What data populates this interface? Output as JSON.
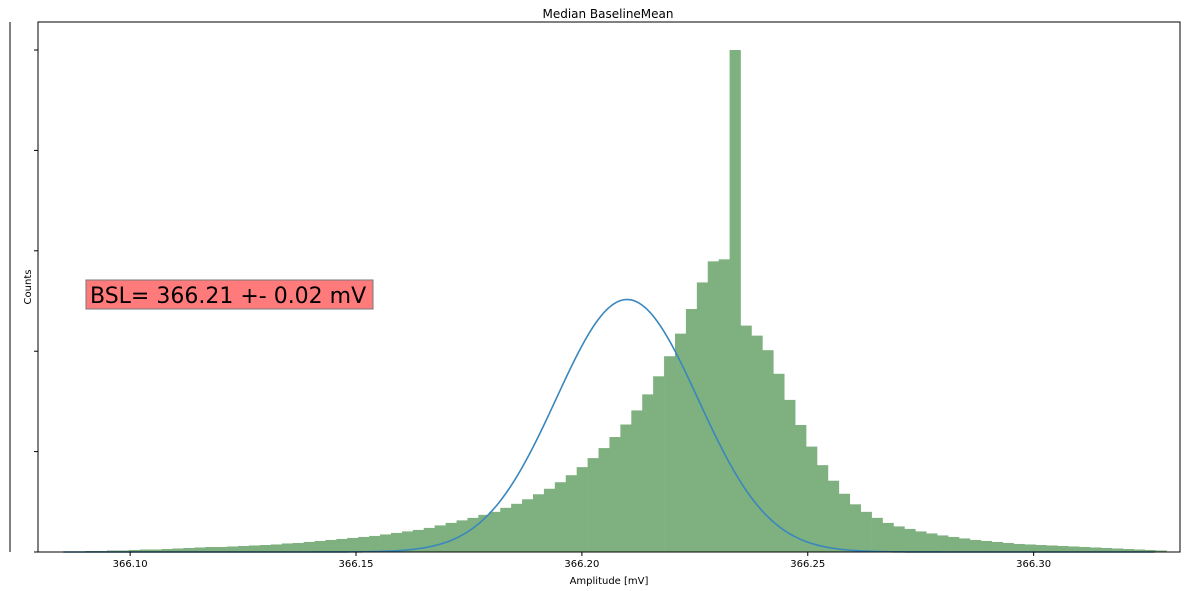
{
  "chart_data": {
    "type": "bar",
    "title": "Median BaselineMean",
    "xlabel": "Amplitude [mV]",
    "ylabel": "Counts",
    "xlim": [
      366.0796,
      366.3324
    ],
    "ylim": [
      0,
      100
    ],
    "xticks": [
      366.1,
      366.15,
      366.2,
      366.25,
      366.3
    ],
    "xtick_labels": [
      "366.10",
      "366.15",
      "366.20",
      "366.25",
      "366.30"
    ],
    "grid": false,
    "histogram": {
      "color": "#7fb07f",
      "bin_start": 366.0852,
      "bin_width": 0.002418,
      "counts": [
        0.1,
        0.1,
        0.2,
        0.2,
        0.3,
        0.3,
        0.4,
        0.5,
        0.5,
        0.6,
        0.7,
        0.8,
        0.9,
        1.0,
        1.0,
        1.1,
        1.2,
        1.3,
        1.4,
        1.5,
        1.7,
        1.8,
        2.0,
        2.2,
        2.4,
        2.6,
        2.8,
        3.0,
        3.2,
        3.5,
        3.8,
        4.1,
        4.4,
        4.8,
        5.3,
        5.8,
        6.3,
        6.8,
        7.4,
        8.0,
        8.8,
        9.6,
        10.5,
        11.5,
        12.6,
        13.9,
        15.3,
        16.9,
        18.7,
        20.7,
        22.9,
        25.4,
        28.2,
        31.4,
        35.0,
        39.0,
        43.5,
        48.4,
        53.7,
        57.9,
        58.3,
        100.0,
        45.1,
        43.1,
        40.2,
        35.5,
        30.3,
        25.3,
        21.0,
        17.3,
        14.2,
        11.6,
        9.5,
        8.0,
        6.8,
        5.8,
        5.1,
        4.6,
        4.1,
        3.7,
        3.3,
        3.0,
        2.7,
        2.4,
        2.2,
        2.0,
        1.8,
        1.6,
        1.5,
        1.4,
        1.3,
        1.2,
        1.1,
        1.0,
        0.9,
        0.8,
        0.7,
        0.6,
        0.5,
        0.4,
        0.3
      ]
    },
    "fit_curve": {
      "type": "gaussian",
      "color": "#3a87be",
      "mean": 366.21,
      "sigma": 0.0157,
      "amplitude": 50.3,
      "x_range": [
        366.0852,
        366.3268
      ]
    },
    "annotation": {
      "text": "BSL= 366.21 +- 0.02 mV",
      "box_color": "#ff7b7b",
      "position": "left-middle"
    }
  }
}
